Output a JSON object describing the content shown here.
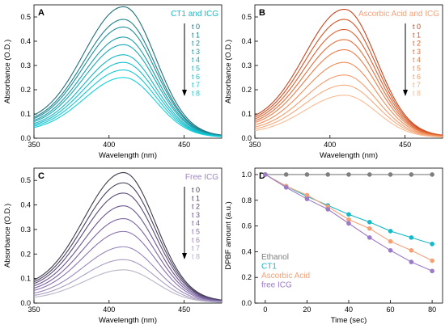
{
  "chart_data": [
    {
      "panel": "A",
      "type": "line",
      "legend": "CT1 and ICG",
      "legend_color": "#17b8c8",
      "xlabel": "Wavelength (nm)",
      "ylabel": "Absorbance (O.D.)",
      "xlim": [
        350,
        475
      ],
      "ylim": [
        0,
        0.55
      ],
      "xticks": [
        350,
        400,
        450
      ],
      "yticks": [
        0.0,
        0.1,
        0.2,
        0.3,
        0.4,
        0.5
      ],
      "peak_x": 410,
      "time_labels": [
        "t 0",
        "t 1",
        "t 2",
        "t 3",
        "t 4",
        "t 5",
        "t 6",
        "t 7",
        "t 8"
      ],
      "series": [
        {
          "name": "t 0",
          "peak": 0.52,
          "color": "#1f6f7a"
        },
        {
          "name": "t 1",
          "peak": 0.47,
          "color": "#1d7f8a"
        },
        {
          "name": "t 2",
          "peak": 0.44,
          "color": "#1b8e9a"
        },
        {
          "name": "t 3",
          "peak": 0.4,
          "color": "#199daa"
        },
        {
          "name": "t 4",
          "peak": 0.37,
          "color": "#17aab8"
        },
        {
          "name": "t 5",
          "peak": 0.33,
          "color": "#15b5c4"
        },
        {
          "name": "t 6",
          "peak": 0.3,
          "color": "#13bfcc"
        },
        {
          "name": "t 7",
          "peak": 0.27,
          "color": "#12c8d4"
        },
        {
          "name": "t 8",
          "peak": 0.24,
          "color": "#10d0dc"
        }
      ]
    },
    {
      "panel": "B",
      "type": "line",
      "legend": "Ascorbic Acid and ICG",
      "legend_color": "#f5a178",
      "xlabel": "Wavelength (nm)",
      "ylabel": "Absorbance (O.D.)",
      "xlim": [
        350,
        475
      ],
      "ylim": [
        0,
        0.55
      ],
      "xticks": [
        350,
        400,
        450
      ],
      "yticks": [
        0.0,
        0.1,
        0.2,
        0.3,
        0.4,
        0.5
      ],
      "peak_x": 410,
      "time_labels": [
        "t 0",
        "t 1",
        "t 2",
        "t 3",
        "t 4",
        "t 5",
        "t 6",
        "t 7",
        "t 8"
      ],
      "series": [
        {
          "name": "t 0",
          "peak": 0.51,
          "color": "#c8451e"
        },
        {
          "name": "t 1",
          "peak": 0.47,
          "color": "#d45226"
        },
        {
          "name": "t 2",
          "peak": 0.43,
          "color": "#de602f"
        },
        {
          "name": "t 3",
          "peak": 0.39,
          "color": "#e56e3a"
        },
        {
          "name": "t 4",
          "peak": 0.35,
          "color": "#ec7c47"
        },
        {
          "name": "t 5",
          "peak": 0.3,
          "color": "#f08c57"
        },
        {
          "name": "t 6",
          "peak": 0.25,
          "color": "#f39b69"
        },
        {
          "name": "t 7",
          "peak": 0.21,
          "color": "#f5ab7d"
        },
        {
          "name": "t 8",
          "peak": 0.17,
          "color": "#f7bb93"
        }
      ]
    },
    {
      "panel": "C",
      "type": "line",
      "legend": "Free ICG",
      "legend_color": "#9c86c0",
      "xlabel": "Wavelength (nm)",
      "ylabel": "Absorbance (O.D.)",
      "xlim": [
        350,
        475
      ],
      "ylim": [
        0,
        0.55
      ],
      "xticks": [
        350,
        400,
        450
      ],
      "yticks": [
        0.0,
        0.1,
        0.2,
        0.3,
        0.4,
        0.5
      ],
      "peak_x": 410,
      "time_labels": [
        "t 0",
        "t 1",
        "t 2",
        "t 3",
        "t 4",
        "t 5",
        "t 6",
        "t 7",
        "t 8"
      ],
      "series": [
        {
          "name": "t 0",
          "peak": 0.51,
          "color": "#3c3a4a"
        },
        {
          "name": "t 1",
          "peak": 0.47,
          "color": "#4a4260"
        },
        {
          "name": "t 2",
          "peak": 0.43,
          "color": "#5a4a78"
        },
        {
          "name": "t 3",
          "peak": 0.38,
          "color": "#6b5590"
        },
        {
          "name": "t 4",
          "peak": 0.33,
          "color": "#7a62a2"
        },
        {
          "name": "t 5",
          "peak": 0.28,
          "color": "#8a72b0"
        },
        {
          "name": "t 6",
          "peak": 0.22,
          "color": "#9a86ba"
        },
        {
          "name": "t 7",
          "peak": 0.17,
          "color": "#aa9dc2"
        },
        {
          "name": "t 8",
          "peak": 0.13,
          "color": "#bab4c8"
        }
      ]
    },
    {
      "panel": "D",
      "type": "line",
      "xlabel": "Time (sec)",
      "ylabel": "DPBF amount (a.u.)",
      "xlim": [
        -5,
        85
      ],
      "ylim": [
        0,
        1.05
      ],
      "xticks": [
        0,
        20,
        40,
        60,
        80
      ],
      "yticks": [
        0.0,
        0.2,
        0.4,
        0.6,
        0.8,
        1.0
      ],
      "legend_position": "bottom-left",
      "x": [
        0,
        10,
        20,
        30,
        40,
        50,
        60,
        70,
        80
      ],
      "series": [
        {
          "name": "Ethanol",
          "color": "#7f7f7f",
          "values": [
            1.0,
            1.0,
            1.0,
            1.0,
            1.0,
            1.0,
            1.0,
            1.0,
            1.0
          ]
        },
        {
          "name": "CT1",
          "color": "#17b8c8",
          "values": [
            1.0,
            0.91,
            0.83,
            0.76,
            0.69,
            0.63,
            0.56,
            0.51,
            0.46
          ]
        },
        {
          "name": "Ascorbic Acid",
          "color": "#f5a178",
          "values": [
            1.0,
            0.91,
            0.84,
            0.75,
            0.65,
            0.58,
            0.48,
            0.41,
            0.33
          ]
        },
        {
          "name": "free ICG",
          "color": "#9c7bc6",
          "values": [
            1.0,
            0.9,
            0.81,
            0.73,
            0.62,
            0.51,
            0.41,
            0.32,
            0.25
          ]
        }
      ]
    }
  ]
}
